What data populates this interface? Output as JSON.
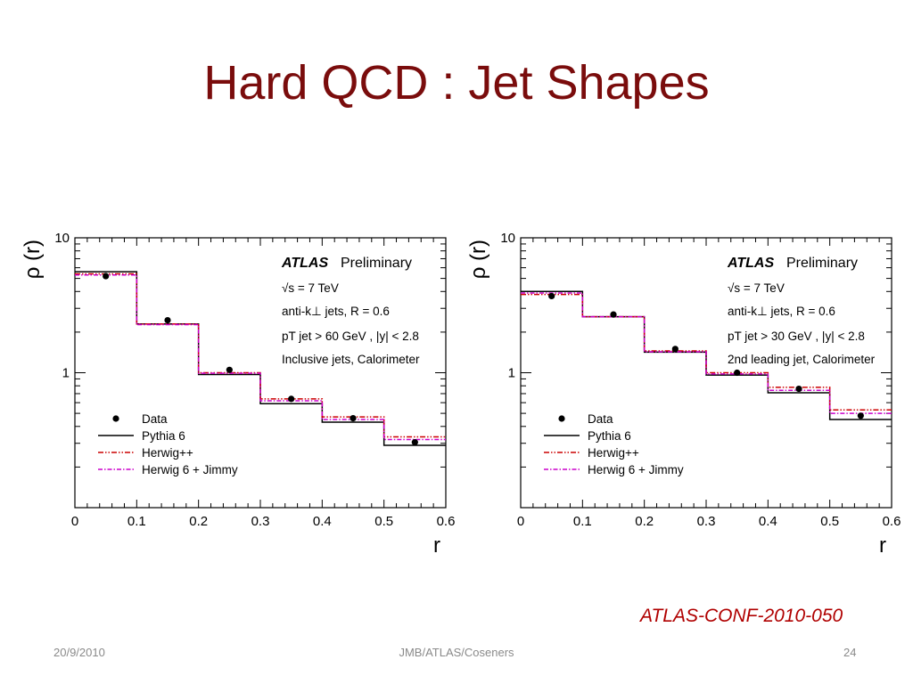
{
  "slide": {
    "title": "Hard QCD : Jet Shapes",
    "reference": "ATLAS-CONF-2010-050",
    "footer": {
      "date": "20/9/2010",
      "center": "JMB/ATLAS/Coseners",
      "page": "24"
    }
  },
  "colors": {
    "title": "#7a0c0c",
    "reference": "#b00000",
    "data": "#000000",
    "pythia": "#000000",
    "herwigpp": "#cc0000",
    "herwig6": "#cc00cc",
    "footer": "#8a8a8a"
  },
  "chart_data": [
    {
      "type": "line",
      "ylabel": "ρ (r)",
      "xlabel": "r",
      "xlim": [
        0,
        0.6
      ],
      "ylim": [
        0.1,
        10
      ],
      "yscale": "log",
      "x_ticks": [
        "0",
        "0.1",
        "0.2",
        "0.3",
        "0.4",
        "0.5",
        "0.6"
      ],
      "y_ticks": [
        "1",
        "10"
      ],
      "annotations": {
        "experiment": "ATLAS",
        "status": "Preliminary",
        "energy": "√s = 7 TeV",
        "algorithm": "anti-k⊥ jets, R = 0.6",
        "cuts": "pT jet > 60 GeV , |y| < 2.8",
        "selection": "Inclusive jets, Calorimeter"
      },
      "legend": [
        "Data",
        "Pythia 6",
        "Herwig++",
        "Herwig 6 + Jimmy"
      ],
      "legend_position": "bottom-left",
      "bin_edges": [
        0,
        0.1,
        0.2,
        0.3,
        0.4,
        0.5,
        0.6
      ],
      "series": [
        {
          "name": "Data",
          "style": "points",
          "x": [
            0.05,
            0.15,
            0.25,
            0.35,
            0.45,
            0.55
          ],
          "values": [
            5.2,
            2.45,
            1.05,
            0.64,
            0.46,
            0.305
          ]
        },
        {
          "name": "Pythia 6",
          "style": "histogram",
          "values": [
            5.6,
            2.3,
            0.97,
            0.59,
            0.43,
            0.29
          ]
        },
        {
          "name": "Herwig++",
          "style": "histogram",
          "values": [
            5.4,
            2.3,
            1.0,
            0.64,
            0.47,
            0.335
          ]
        },
        {
          "name": "Herwig 6 + Jimmy",
          "style": "histogram",
          "values": [
            5.3,
            2.27,
            0.99,
            0.62,
            0.45,
            0.32
          ]
        }
      ]
    },
    {
      "type": "line",
      "ylabel": "ρ (r)",
      "xlabel": "r",
      "xlim": [
        0,
        0.6
      ],
      "ylim": [
        0.1,
        10
      ],
      "yscale": "log",
      "x_ticks": [
        "0",
        "0.1",
        "0.2",
        "0.3",
        "0.4",
        "0.5",
        "0.6"
      ],
      "y_ticks": [
        "1",
        "10"
      ],
      "annotations": {
        "experiment": "ATLAS",
        "status": "Preliminary",
        "energy": "√s = 7 TeV",
        "algorithm": "anti-k⊥ jets, R = 0.6",
        "cuts": "pT jet > 30 GeV , |y| < 2.8",
        "selection": "2nd leading jet, Calorimeter"
      },
      "legend": [
        "Data",
        "Pythia 6",
        "Herwig++",
        "Herwig 6 + Jimmy"
      ],
      "legend_position": "bottom-left",
      "bin_edges": [
        0,
        0.1,
        0.2,
        0.3,
        0.4,
        0.5,
        0.6
      ],
      "series": [
        {
          "name": "Data",
          "style": "points",
          "x": [
            0.05,
            0.15,
            0.25,
            0.35,
            0.45,
            0.55
          ],
          "values": [
            3.7,
            2.7,
            1.5,
            1.0,
            0.76,
            0.48
          ]
        },
        {
          "name": "Pythia 6",
          "style": "histogram",
          "values": [
            4.0,
            2.6,
            1.42,
            0.96,
            0.71,
            0.45
          ]
        },
        {
          "name": "Herwig++",
          "style": "histogram",
          "values": [
            3.8,
            2.6,
            1.45,
            1.0,
            0.78,
            0.53
          ]
        },
        {
          "name": "Herwig 6 + Jimmy",
          "style": "histogram",
          "values": [
            3.9,
            2.6,
            1.43,
            0.98,
            0.74,
            0.5
          ]
        }
      ]
    }
  ]
}
